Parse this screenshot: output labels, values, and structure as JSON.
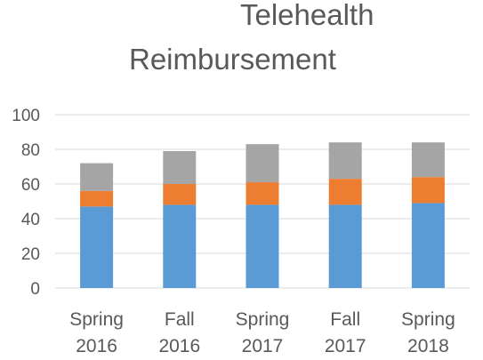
{
  "chart_data": {
    "type": "bar",
    "stacked": true,
    "title_lines": [
      "Telehealth",
      "Reimbursement"
    ],
    "categories": [
      [
        "Spring",
        "2016"
      ],
      [
        "Fall",
        "2016"
      ],
      [
        "Spring",
        "2017"
      ],
      [
        "Fall",
        "2017"
      ],
      [
        "Spring",
        "2018"
      ]
    ],
    "series": [
      {
        "values": [
          47,
          48,
          48,
          48,
          49
        ],
        "color": "#5b9bd5"
      },
      {
        "values": [
          9,
          12,
          13,
          15,
          15
        ],
        "color": "#ed7d31"
      },
      {
        "values": [
          16,
          19,
          22,
          21,
          20
        ],
        "color": "#a5a5a5"
      }
    ],
    "ylim": [
      0,
      100
    ],
    "yticks": [
      0,
      20,
      40,
      60,
      80,
      100
    ],
    "grid": true,
    "gridline_color": "#d9d9d9",
    "legend": "none"
  }
}
